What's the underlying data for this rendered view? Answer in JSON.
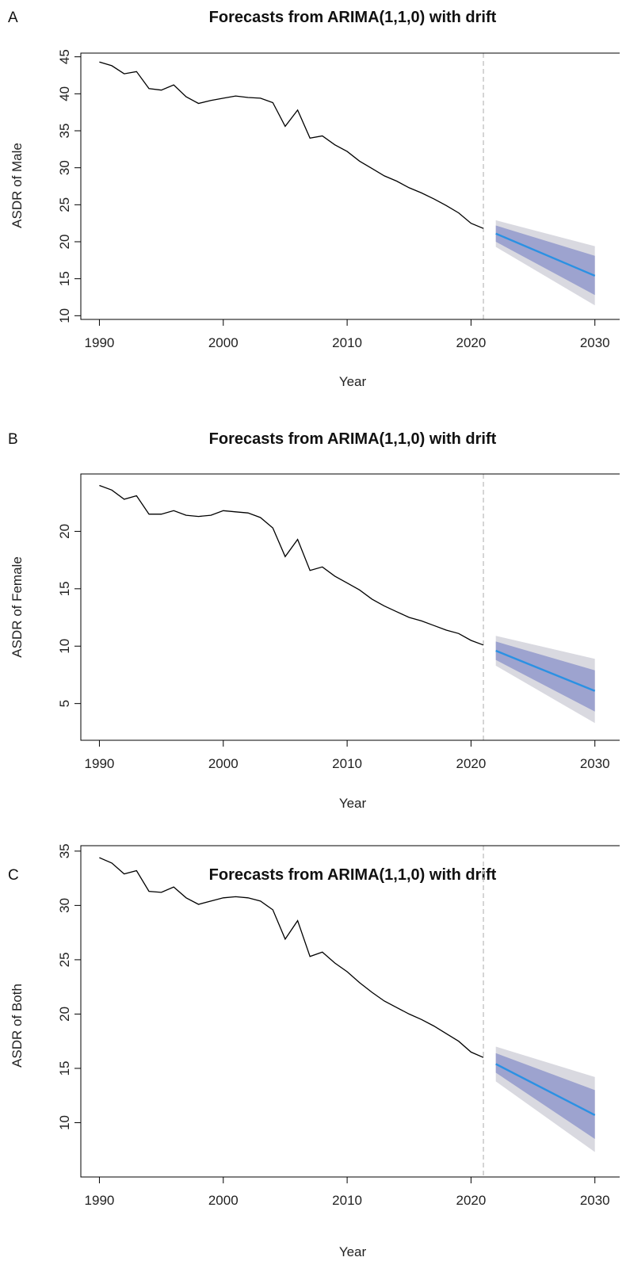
{
  "chart_data": [
    {
      "type": "line",
      "panel": "A",
      "title": "Forecasts from ARIMA(1,1,0) with drift",
      "xlabel": "Year",
      "ylabel": "ASDR of Male",
      "xlim": [
        1988.5,
        2032
      ],
      "ylim": [
        9.5,
        45.5
      ],
      "xticks": [
        1990,
        2000,
        2010,
        2020,
        2030
      ],
      "yticks": [
        10,
        15,
        20,
        25,
        30,
        35,
        40,
        45
      ],
      "grid": false,
      "colors": {
        "observed": "#000000",
        "forecast": "#2b91e3",
        "pi80": "#9da3cf",
        "pi95": "#d9d9e0",
        "divider": "#c8c8c8"
      },
      "divider_x": 2021,
      "observed": {
        "x": [
          1990,
          1991,
          1992,
          1993,
          1994,
          1995,
          1996,
          1997,
          1998,
          1999,
          2000,
          2001,
          2002,
          2003,
          2004,
          2005,
          2006,
          2007,
          2008,
          2009,
          2010,
          2011,
          2012,
          2013,
          2014,
          2015,
          2016,
          2017,
          2018,
          2019,
          2020,
          2021
        ],
        "y": [
          44.3,
          43.8,
          42.7,
          43.0,
          40.7,
          40.5,
          41.2,
          39.6,
          38.7,
          39.1,
          39.4,
          39.7,
          39.5,
          39.4,
          38.8,
          35.6,
          37.8,
          34.0,
          34.3,
          33.1,
          32.2,
          30.9,
          29.9,
          28.9,
          28.2,
          27.3,
          26.6,
          25.8,
          24.9,
          23.9,
          22.5,
          21.8
        ]
      },
      "forecast": {
        "x": [
          2022,
          2030
        ],
        "mean": [
          21.1,
          15.4
        ],
        "lo80": [
          20.0,
          12.8
        ],
        "hi80": [
          22.2,
          18.1
        ],
        "lo95": [
          19.3,
          11.4
        ],
        "hi95": [
          22.9,
          19.4
        ]
      }
    },
    {
      "type": "line",
      "panel": "B",
      "title": "Forecasts from ARIMA(1,1,0) with drift",
      "xlabel": "Year",
      "ylabel": "ASDR of Female",
      "xlim": [
        1988.5,
        2032
      ],
      "ylim": [
        1.8,
        25.0
      ],
      "xticks": [
        1990,
        2000,
        2010,
        2020,
        2030
      ],
      "yticks": [
        5,
        10,
        15,
        20
      ],
      "grid": false,
      "colors": {
        "observed": "#000000",
        "forecast": "#2b91e3",
        "pi80": "#9da3cf",
        "pi95": "#d9d9e0",
        "divider": "#c8c8c8"
      },
      "divider_x": 2021,
      "observed": {
        "x": [
          1990,
          1991,
          1992,
          1993,
          1994,
          1995,
          1996,
          1997,
          1998,
          1999,
          2000,
          2001,
          2002,
          2003,
          2004,
          2005,
          2006,
          2007,
          2008,
          2009,
          2010,
          2011,
          2012,
          2013,
          2014,
          2015,
          2016,
          2017,
          2018,
          2019,
          2020,
          2021
        ],
        "y": [
          24.0,
          23.6,
          22.8,
          23.1,
          21.5,
          21.5,
          21.8,
          21.4,
          21.3,
          21.4,
          21.8,
          21.7,
          21.6,
          21.2,
          20.3,
          17.8,
          19.3,
          16.6,
          16.9,
          16.1,
          15.5,
          14.9,
          14.1,
          13.5,
          13.0,
          12.5,
          12.2,
          11.8,
          11.4,
          11.1,
          10.5,
          10.1
        ]
      },
      "forecast": {
        "x": [
          2022,
          2030
        ],
        "mean": [
          9.6,
          6.1
        ],
        "lo80": [
          8.8,
          4.3
        ],
        "hi80": [
          10.4,
          7.9
        ],
        "lo95": [
          8.3,
          3.3
        ],
        "hi95": [
          10.9,
          8.9
        ]
      }
    },
    {
      "type": "line",
      "panel": "C",
      "title": "Forecasts from ARIMA(1,1,0) with drift",
      "xlabel": "Year",
      "ylabel": "ASDR of Both",
      "xlim": [
        1988.5,
        2032
      ],
      "ylim": [
        5.0,
        35.5
      ],
      "xticks": [
        1990,
        2000,
        2010,
        2020,
        2030
      ],
      "yticks": [
        10,
        15,
        20,
        25,
        30,
        35
      ],
      "grid": false,
      "colors": {
        "observed": "#000000",
        "forecast": "#2b91e3",
        "pi80": "#9da3cf",
        "pi95": "#d9d9e0",
        "divider": "#c8c8c8"
      },
      "divider_x": 2021,
      "observed": {
        "x": [
          1990,
          1991,
          1992,
          1993,
          1994,
          1995,
          1996,
          1997,
          1998,
          1999,
          2000,
          2001,
          2002,
          2003,
          2004,
          2005,
          2006,
          2007,
          2008,
          2009,
          2010,
          2011,
          2012,
          2013,
          2014,
          2015,
          2016,
          2017,
          2018,
          2019,
          2020,
          2021
        ],
        "y": [
          34.4,
          33.9,
          32.9,
          33.2,
          31.3,
          31.2,
          31.7,
          30.7,
          30.1,
          30.4,
          30.7,
          30.8,
          30.7,
          30.4,
          29.6,
          26.9,
          28.6,
          25.3,
          25.7,
          24.7,
          23.9,
          22.9,
          22.0,
          21.2,
          20.6,
          20.0,
          19.5,
          18.9,
          18.2,
          17.5,
          16.5,
          16.0
        ]
      },
      "forecast": {
        "x": [
          2022,
          2030
        ],
        "mean": [
          15.4,
          10.7
        ],
        "lo80": [
          14.6,
          8.5
        ],
        "hi80": [
          16.4,
          13.0
        ],
        "lo95": [
          13.8,
          7.3
        ],
        "hi95": [
          17.0,
          14.2
        ]
      }
    }
  ]
}
